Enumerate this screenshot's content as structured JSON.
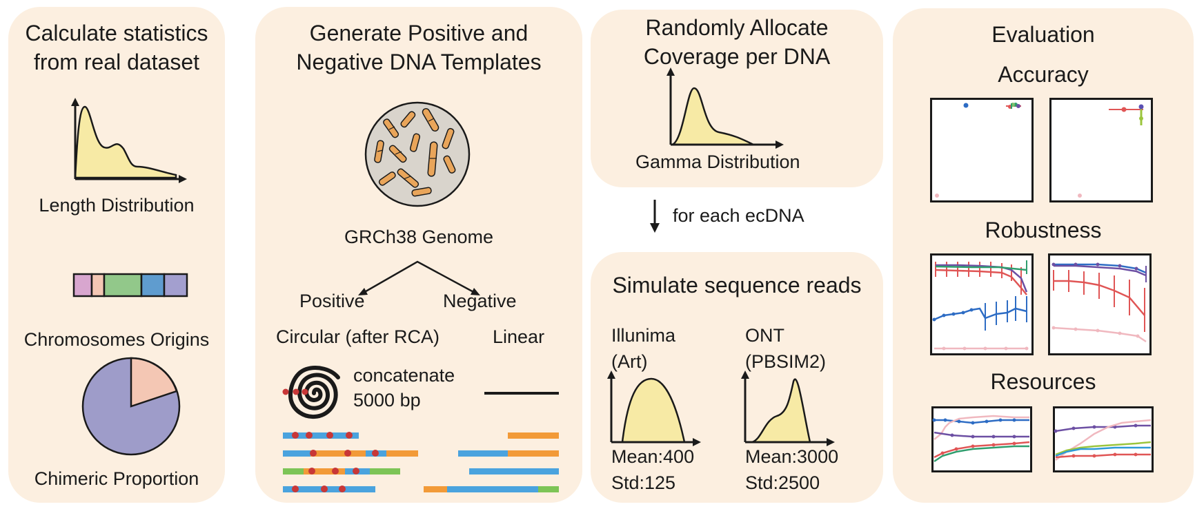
{
  "panel1": {
    "title_line1": "Calculate statistics",
    "title_line2": "from real dataset",
    "length_label": "Length Distribution",
    "chrom_label": "Chromosomes Origins",
    "chimeric_label": "Chimeric Proportion",
    "chrom_colors": [
      "#d8a6cf",
      "#f4c7b4",
      "#92c88a",
      "#5f9ccf",
      "#a39fcf"
    ],
    "pie_colors": [
      "#9e9cc9",
      "#f4c7b4"
    ]
  },
  "panel2": {
    "title_line1": "Generate Positive and",
    "title_line2": "Negative DNA Templates",
    "genome_label": "GRCh38 Genome",
    "positive_label": "Positive",
    "negative_label": "Negative",
    "circular_label": "Circular (after RCA)",
    "linear_label": "Linear",
    "concat_line1": "concatenate",
    "concat_line2": "5000 bp",
    "segment_colors": [
      "#4aa3de",
      "#f29a38",
      "#7dc456",
      "#c83737"
    ]
  },
  "panel3": {
    "title_line1": "Randomly Allocate",
    "title_line2": "Coverage per DNA",
    "gamma_label": "Gamma Distribution"
  },
  "middle": {
    "each_label": "for each ecDNA"
  },
  "panel4": {
    "title": "Simulate sequence reads",
    "illumina_line1": "Illunima",
    "illumina_line2": "(Art)",
    "ont_line1": "ONT",
    "ont_line2": "(PBSIM2)",
    "illumina_mean": "Mean:400",
    "illumina_std": "Std:125",
    "ont_mean": "Mean:3000",
    "ont_std": "Std:2500"
  },
  "panel5": {
    "title": "Evaluation",
    "accuracy_label": "Accuracy",
    "robustness_label": "Robustness",
    "resources_label": "Resources"
  },
  "colors": {
    "panel_bg": "#fcefe0",
    "curve_fill": "#f7eaa5",
    "outline": "#1a1a1a"
  }
}
